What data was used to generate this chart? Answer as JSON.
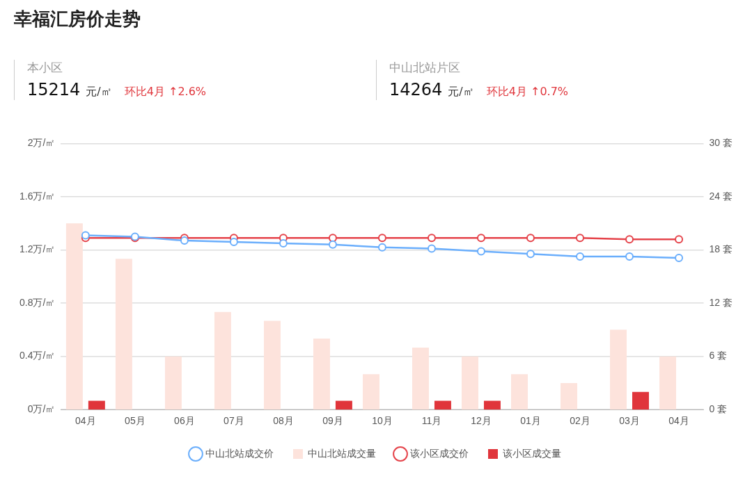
{
  "chart_data": {
    "type": "bar",
    "title": "幸福汇房价走势",
    "annotations": [
      "本小区",
      "15214",
      "元/㎡",
      "环比4月 ↑2.6%",
      "中山北站片区",
      "14264",
      "元/㎡",
      "环比4月 ↑0.7%"
    ],
    "categories": [
      "04月",
      "05月",
      "06月",
      "07月",
      "08月",
      "09月",
      "10月",
      "11月",
      "12月",
      "01月",
      "02月",
      "03月",
      "04月"
    ],
    "series": [
      {
        "name": "中山北站成交价",
        "type": "line",
        "color": "#6aaefc",
        "values": [
          1.31,
          1.3,
          1.27,
          1.26,
          1.25,
          1.24,
          1.22,
          1.21,
          1.19,
          1.17,
          1.15,
          1.15,
          1.14
        ]
      },
      {
        "name": "中山北站成交量",
        "axis": "y2",
        "color": "#fde3dc",
        "values": [
          21,
          17,
          6,
          11,
          10,
          8,
          4,
          7,
          6,
          4,
          3,
          9,
          6
        ]
      },
      {
        "name": "该小区成交价",
        "type": "line",
        "color": "#e5434a",
        "values": [
          1.29,
          1.29,
          1.29,
          1.29,
          1.29,
          1.29,
          1.29,
          1.29,
          1.29,
          1.29,
          1.29,
          1.28,
          1.28
        ]
      },
      {
        "name": "该小区成交量",
        "axis": "y2",
        "color": "#e0353b",
        "values": [
          1,
          0,
          0,
          0,
          0,
          1,
          0,
          1,
          1,
          0,
          0,
          2,
          0
        ]
      }
    ],
    "ylim": [
      0,
      2
    ],
    "yticks": [
      {
        "value": 0,
        "label": "0万/㎡"
      },
      {
        "value": 0.4,
        "label": "0.4万/㎡"
      },
      {
        "value": 0.8,
        "label": "0.8万/㎡"
      },
      {
        "value": 1.2,
        "label": "1.2万/㎡"
      },
      {
        "value": 1.6,
        "label": "1.6万/㎡"
      },
      {
        "value": 2,
        "label": "2万/㎡"
      }
    ],
    "y2lim": [
      0,
      30
    ],
    "y2ticks": [
      {
        "value": 0,
        "label": "0 套"
      },
      {
        "value": 6,
        "label": "6 套"
      },
      {
        "value": 12,
        "label": "12 套"
      },
      {
        "value": 18,
        "label": "18 套"
      },
      {
        "value": 24,
        "label": "24 套"
      },
      {
        "value": 30,
        "label": "30 套"
      }
    ],
    "grid": "y",
    "legend": "bottom",
    "marker": "circle",
    "line_style": "solid"
  }
}
